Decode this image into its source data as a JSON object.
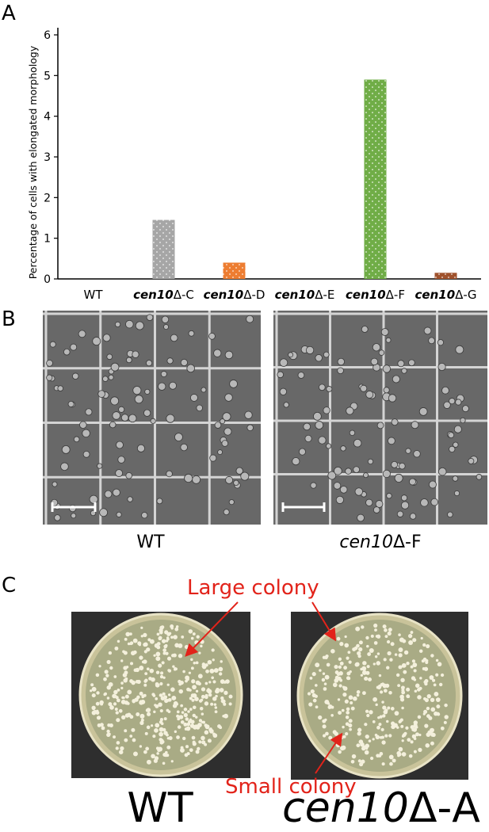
{
  "panels": {
    "a": "A",
    "b": "B",
    "c": "C"
  },
  "chart_data": {
    "type": "bar",
    "ylabel": "Percentage of cells with elongated morphology",
    "ylim": [
      0,
      6
    ],
    "yticks": [
      "0",
      "1",
      "2",
      "3",
      "4",
      "5",
      "6"
    ],
    "categories": [
      {
        "prefix": "",
        "italic": "",
        "suffix": "WT"
      },
      {
        "prefix": "",
        "italic": "cen10",
        "suffix": "Δ-C"
      },
      {
        "prefix": "",
        "italic": "cen10",
        "suffix": "Δ-D"
      },
      {
        "prefix": "",
        "italic": "cen10",
        "suffix": "Δ-E"
      },
      {
        "prefix": "",
        "italic": "cen10",
        "suffix": "Δ-F"
      },
      {
        "prefix": "",
        "italic": "cen10",
        "suffix": "Δ-G"
      }
    ],
    "values": [
      0,
      1.45,
      0.4,
      0,
      4.9,
      0.15
    ],
    "colors": [
      "#999999",
      "#a6a6a6",
      "#ed7d31",
      "#999999",
      "#70ad47",
      "#a0522d"
    ],
    "grid": false,
    "legend": "none"
  },
  "micrographs": [
    {
      "label_italic": "",
      "label_suffix": "WT"
    },
    {
      "label_italic": "cen10",
      "label_suffix": "Δ-F"
    }
  ],
  "plates": {
    "labels": [
      {
        "italic": "",
        "suffix": "WT"
      },
      {
        "italic": "cen10",
        "suffix": "Δ-A"
      }
    ],
    "annotations": {
      "large": "Large colony",
      "small": "Small colony"
    },
    "annotation_color": "#e2231a"
  }
}
